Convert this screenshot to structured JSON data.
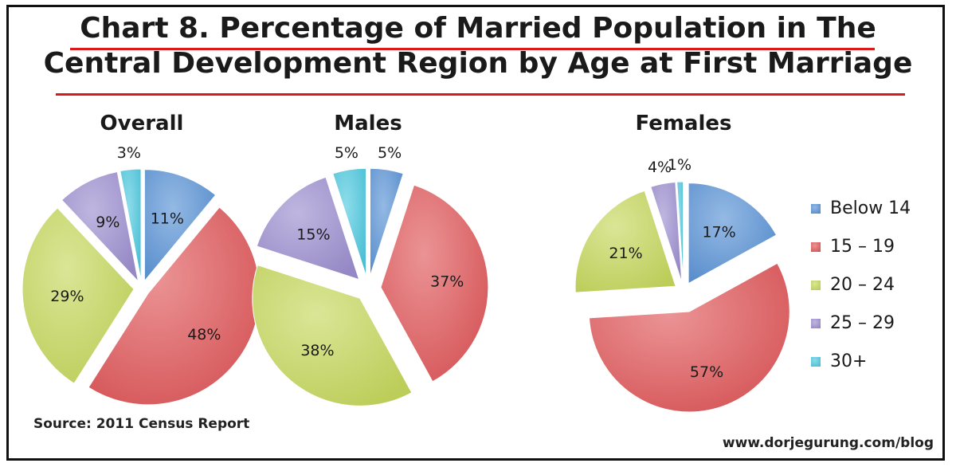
{
  "title_line1": "Chart 8. Percentage of Married Population in The",
  "title_line2": "Central Development Region by Age at First Marriage",
  "source": "Source: 2011 Census Report",
  "website": "www.dorjegurung.com/blog",
  "chart_data": {
    "type": "pie",
    "title": "Chart 8. Percentage of Married Population in The Central Development Region by Age at First Marriage",
    "legend_position": "right",
    "categories": [
      "Below 14",
      "15 – 19",
      "20 – 24",
      "25 – 29",
      "30+"
    ],
    "colors": [
      "#5b93d6",
      "#e0595c",
      "#c6d85e",
      "#9d8fcf",
      "#4fc9df"
    ],
    "pies": [
      {
        "name": "Overall",
        "values": [
          11,
          48,
          29,
          9,
          3
        ],
        "labels": [
          "11%",
          "48%",
          "29%",
          "9%",
          "3%"
        ]
      },
      {
        "name": "Males",
        "values": [
          5,
          37,
          38,
          15,
          5
        ],
        "labels": [
          "5%",
          "37%",
          "38%",
          "15%",
          "5%"
        ]
      },
      {
        "name": "Females",
        "values": [
          17,
          57,
          21,
          4,
          1
        ],
        "labels": [
          "17%",
          "57%",
          "21%",
          "4%",
          "1%"
        ]
      }
    ]
  }
}
